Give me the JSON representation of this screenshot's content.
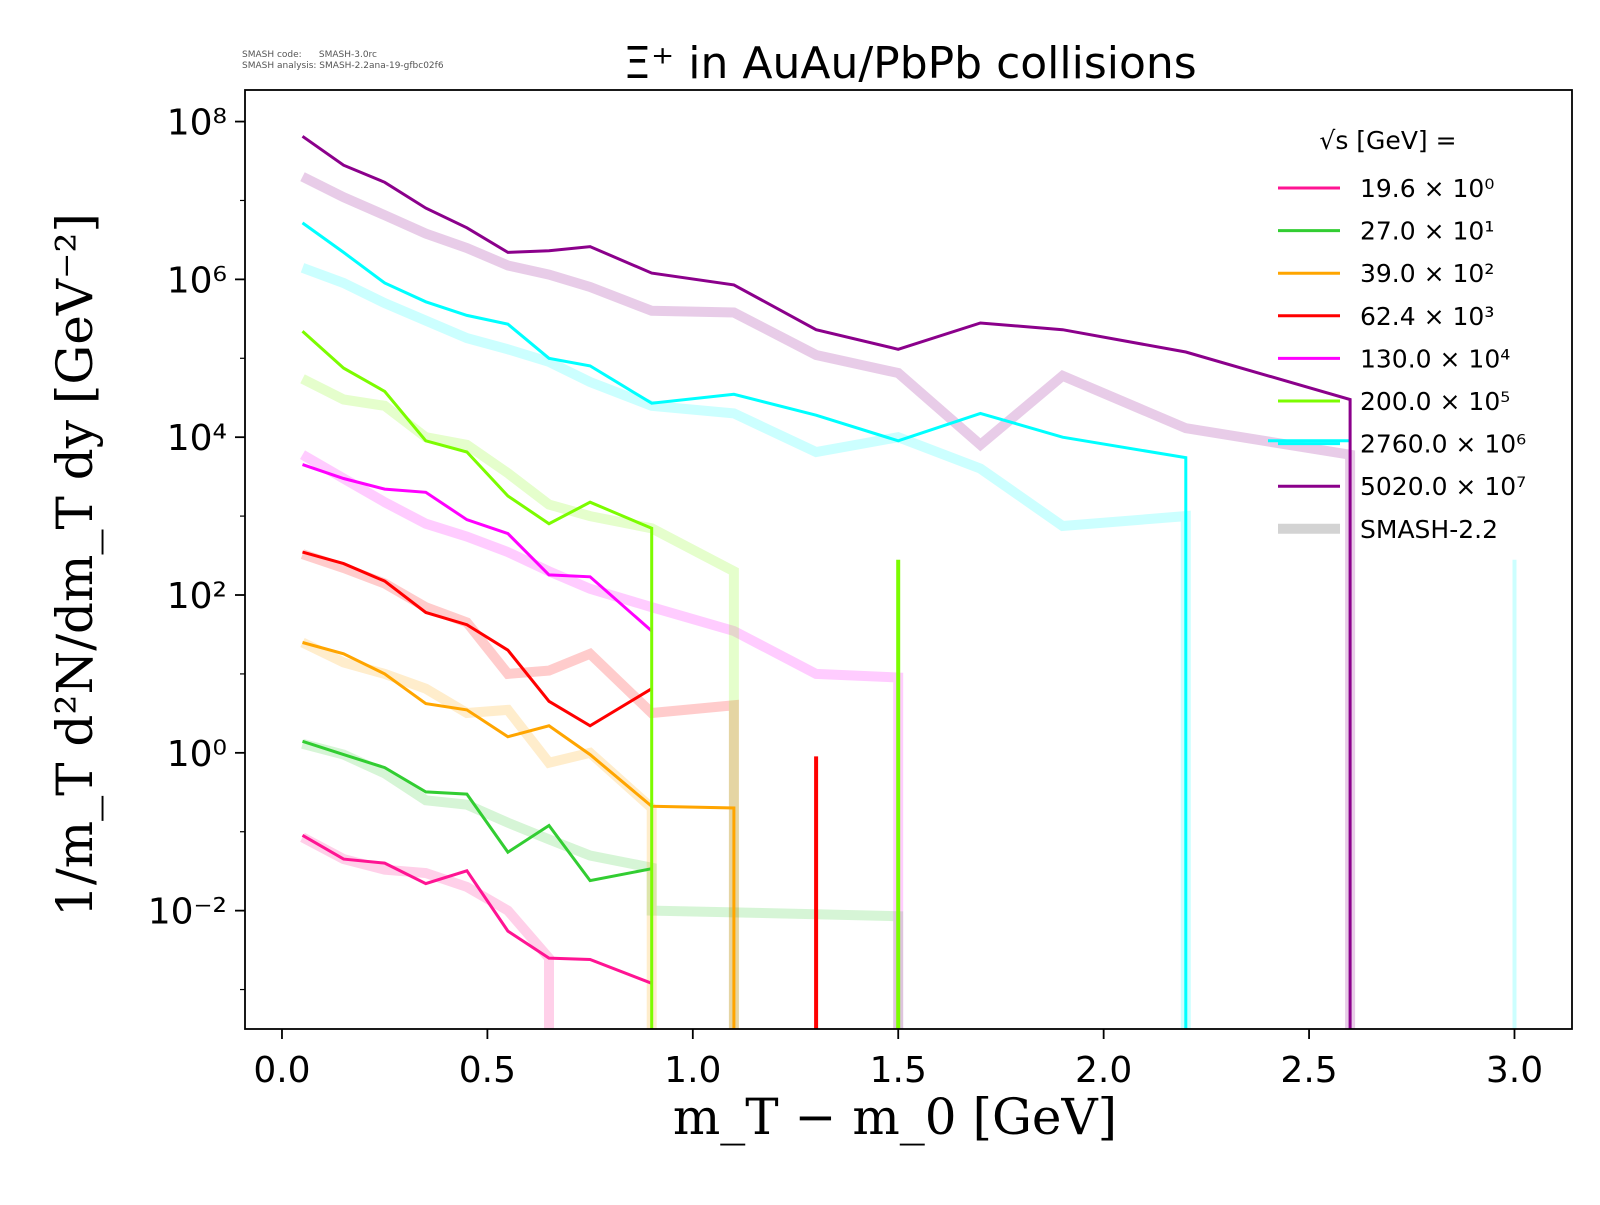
{
  "meta": {
    "code_line": "SMASH code:      SMASH-3.0rc",
    "analysis_line": "SMASH analysis: SMASH-2.2ana-19-gfbc02f6"
  },
  "chart_data": {
    "type": "line",
    "title": "Ξ⁺ in AuAu/PbPb collisions",
    "xlabel": "m_T − m_0 [GeV]",
    "ylabel": "1/m_T d²N/dm_T dy [GeV⁻²]",
    "xlim": [
      -0.09,
      3.14
    ],
    "ylim_log10": [
      -3.5,
      8.4
    ],
    "yscale": "log",
    "x_ticks": [
      0.0,
      0.5,
      1.0,
      1.5,
      2.0,
      2.5,
      3.0
    ],
    "x_tick_labels": [
      "0.0",
      "0.5",
      "1.0",
      "1.5",
      "2.0",
      "2.5",
      "3.0"
    ],
    "y_ticks_log10": [
      -2,
      0,
      2,
      4,
      6,
      8
    ],
    "y_tick_labels": [
      "10⁻²",
      "10⁰",
      "10²",
      "10⁴",
      "10⁶",
      "10⁸"
    ],
    "grid": false,
    "legend": {
      "placement": "top-right",
      "title": "√s [GeV] =",
      "entries": [
        "19.6 × 10⁰",
        "27.0 × 10¹",
        "39.0 × 10²",
        "62.4 × 10³",
        "130.0 × 10⁴",
        "200.0 × 10⁵",
        "2760.0 × 10⁶",
        "5020.0 × 10⁷",
        "SMASH-2.2"
      ]
    },
    "series": [
      {
        "name": "19.6 × 10⁰",
        "color": "#ff1493",
        "x": [
          0.05,
          0.15,
          0.25,
          0.35,
          0.45,
          0.55,
          0.65,
          0.75,
          0.9
        ],
        "y": [
          0.09,
          0.045,
          0.04,
          0.022,
          0.032,
          0.0055,
          0.0025,
          0.0024,
          0.0012
        ],
        "smash": {
          "x": [
            0.05,
            0.15,
            0.25,
            0.35,
            0.45,
            0.55,
            0.65,
            0.65
          ],
          "y": [
            0.085,
            0.045,
            0.033,
            0.03,
            0.02,
            0.01,
            0.0025,
            0.0003
          ]
        }
      },
      {
        "name": "27.0 × 10¹",
        "color": "#32cd32",
        "x": [
          0.05,
          0.15,
          0.25,
          0.35,
          0.45,
          0.55,
          0.65,
          0.75,
          0.9
        ],
        "y": [
          1.4,
          0.95,
          0.65,
          0.32,
          0.3,
          0.055,
          0.12,
          0.024,
          0.034
        ],
        "smash": {
          "x": [
            0.05,
            0.15,
            0.25,
            0.35,
            0.45,
            0.55,
            0.65,
            0.75,
            0.9,
            0.9,
            1.3,
            1.5,
            1.5
          ],
          "y": [
            1.3,
            0.95,
            0.55,
            0.25,
            0.22,
            0.13,
            0.08,
            0.05,
            0.035,
            0.01,
            0.009,
            0.0085,
            0.0003
          ]
        }
      },
      {
        "name": "39.0 × 10²",
        "color": "#ffa500",
        "x": [
          0.05,
          0.15,
          0.25,
          0.35,
          0.45,
          0.55,
          0.65,
          0.75,
          0.9,
          1.1,
          1.1
        ],
        "y": [
          25,
          18,
          10,
          4.2,
          3.5,
          1.6,
          2.2,
          0.95,
          0.21,
          0.2,
          0.0003
        ],
        "smash": {
          "x": [
            0.05,
            0.15,
            0.25,
            0.35,
            0.45,
            0.55,
            0.65,
            0.75,
            0.9,
            0.9
          ],
          "y": [
            25,
            14,
            10,
            6.5,
            3.2,
            3.5,
            0.75,
            1.0,
            0.2,
            0.0003
          ]
        }
      },
      {
        "name": "62.4 × 10³",
        "color": "#ff0000",
        "x": [
          0.05,
          0.15,
          0.25,
          0.35,
          0.45,
          0.55,
          0.65,
          0.75,
          0.9
        ],
        "y": [
          350,
          250,
          150,
          60,
          42,
          20,
          4.5,
          2.2,
          6.5
        ],
        "smash": {
          "x": [
            0.05,
            0.15,
            0.25,
            0.35,
            0.45,
            0.55,
            0.65,
            0.75,
            0.9,
            1.1,
            1.1
          ],
          "y": [
            330,
            220,
            140,
            70,
            45,
            10,
            11,
            18,
            3.2,
            4.0,
            0.0003
          ]
        },
        "extra_segments": [
          {
            "x": [
              1.3,
              1.3
            ],
            "y": [
              0.9,
              0.0003
            ]
          }
        ]
      },
      {
        "name": "130.0 × 10⁴",
        "color": "#ff00ff",
        "x": [
          0.05,
          0.15,
          0.25,
          0.35,
          0.45,
          0.55,
          0.65,
          0.75,
          0.9
        ],
        "y": [
          4500,
          3000,
          2200,
          2000,
          900,
          600,
          180,
          170,
          35
        ],
        "smash": {
          "x": [
            0.05,
            0.15,
            0.25,
            0.35,
            0.45,
            0.55,
            0.65,
            0.75,
            0.9,
            1.1,
            1.3,
            1.5,
            1.5
          ],
          "y": [
            6000,
            3000,
            1500,
            800,
            550,
            350,
            200,
            120,
            70,
            35,
            10,
            9,
            0.0003
          ]
        }
      },
      {
        "name": "200.0 × 10⁵",
        "color": "#7cfc00",
        "x": [
          0.05,
          0.15,
          0.25,
          0.35,
          0.45,
          0.55,
          0.65,
          0.75,
          0.9,
          0.9
        ],
        "y": [
          220000,
          75000,
          38000,
          9000,
          6500,
          1800,
          800,
          1500,
          700,
          0.0003
        ],
        "smash": {
          "x": [
            0.05,
            0.15,
            0.25,
            0.35,
            0.45,
            0.55,
            0.65,
            0.75,
            0.9,
            1.1,
            1.1
          ],
          "y": [
            55000,
            30000,
            25000,
            10000,
            8000,
            3500,
            1400,
            1000,
            700,
            200,
            0.0003
          ]
        },
        "extra_segments": [
          {
            "x": [
              1.5,
              1.5
            ],
            "y": [
              280,
              0.0003
            ]
          }
        ]
      },
      {
        "name": "2760.0 × 10⁶",
        "color": "#00ffff",
        "x": [
          0.05,
          0.15,
          0.25,
          0.35,
          0.45,
          0.55,
          0.65,
          0.75,
          0.9,
          1.1,
          1.3,
          1.5,
          1.7,
          1.9,
          2.2,
          2.2
        ],
        "y": [
          5200000,
          2200000,
          900000,
          520000,
          350000,
          270000,
          100000,
          80000,
          27000,
          35000,
          19000,
          9000,
          20000,
          10000,
          5500,
          0.0003
        ],
        "smash": {
          "x": [
            0.05,
            0.15,
            0.25,
            0.35,
            0.45,
            0.55,
            0.65,
            0.75,
            0.9,
            1.1,
            1.3,
            1.5,
            1.7,
            1.9,
            2.2,
            2.2
          ],
          "y": [
            1400000,
            900000,
            500000,
            300000,
            180000,
            130000,
            90000,
            50000,
            25000,
            20000,
            6500,
            10000,
            4000,
            750,
            1000,
            0.0003
          ]
        },
        "extra_segments": [
          {
            "x": [
              2.4,
              2.6
            ],
            "y": [
              9000,
              9000
            ]
          },
          {
            "x": [
              3.0,
              3.0
            ],
            "y": [
              280,
              0.0003
            ]
          }
        ]
      },
      {
        "name": "5020.0 × 10⁷",
        "color": "#8b008b",
        "x": [
          0.05,
          0.15,
          0.25,
          0.35,
          0.45,
          0.55,
          0.65,
          0.75,
          0.9,
          1.1,
          1.3,
          1.5,
          1.7,
          1.9,
          2.2,
          2.6,
          2.6
        ],
        "y": [
          65000000,
          28000000,
          17000000,
          8000000,
          4500000,
          2200000,
          2300000,
          2600000,
          1200000,
          850000,
          230000,
          130000,
          280000,
          230000,
          120000,
          30000,
          0.0003
        ],
        "smash": {
          "x": [
            0.05,
            0.15,
            0.25,
            0.35,
            0.45,
            0.55,
            0.65,
            0.75,
            0.9,
            1.1,
            1.3,
            1.5,
            1.7,
            1.9,
            2.2,
            2.6,
            2.6
          ],
          "y": [
            20000000,
            11000000,
            6500000,
            3800000,
            2500000,
            1500000,
            1150000,
            800000,
            400000,
            380000,
            110000,
            65000,
            8000,
            60000,
            13000,
            6000,
            0.0003
          ]
        }
      }
    ],
    "smash_legend_color": "#d3d3d3"
  }
}
